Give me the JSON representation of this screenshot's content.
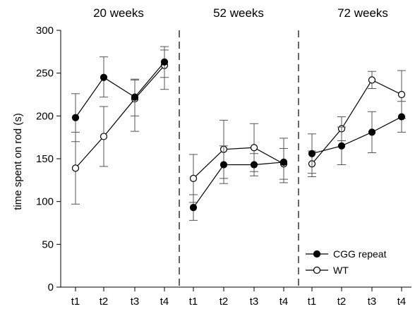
{
  "chart_data": {
    "type": "line",
    "ylabel": "time spent on rod (s)",
    "ylim": [
      0,
      300
    ],
    "yticks": [
      0,
      50,
      100,
      150,
      200,
      250,
      300
    ],
    "categories": [
      "t1",
      "t2",
      "t3",
      "t4"
    ],
    "legend": {
      "placement": "bottom-right",
      "entries": [
        {
          "label": "CGG repeat",
          "marker": "filled-circle"
        },
        {
          "label": "WT",
          "marker": "open-circle"
        }
      ]
    },
    "panels": [
      {
        "title": "20 weeks",
        "series": [
          {
            "name": "CGG repeat",
            "values": [
              198,
              245,
              222,
              263
            ],
            "err_low": [
              170,
              222,
              200,
              245
            ],
            "err_high": [
              226,
              269,
              243,
              281
            ]
          },
          {
            "name": "WT",
            "values": [
              139,
              176,
              220,
              259
            ],
            "err_low": [
              97,
              141,
              182,
              231
            ],
            "err_high": [
              181,
              211,
              242,
              277
            ]
          }
        ]
      },
      {
        "title": "52 weeks",
        "series": [
          {
            "name": "CGG repeat",
            "values": [
              93,
              143,
              143,
              146
            ],
            "err_low": [
              78,
              121,
              130,
              122
            ],
            "err_high": [
              108,
              165,
              156,
              174
            ]
          },
          {
            "name": "WT",
            "values": [
              127,
              161,
              163,
              144
            ],
            "err_low": [
              99,
              127,
              135,
              126
            ],
            "err_high": [
              155,
              195,
              191,
              162
            ]
          }
        ]
      },
      {
        "title": "72 weeks",
        "series": [
          {
            "name": "CGG repeat",
            "values": [
              156,
              165,
              181,
              199
            ],
            "err_low": [
              133,
              143,
              157,
              181
            ],
            "err_high": [
              179,
              187,
              205,
              217
            ]
          },
          {
            "name": "WT",
            "values": [
              144,
              185,
              242,
              225
            ],
            "err_low": [
              129,
              171,
              232,
              197
            ],
            "err_high": [
              159,
              199,
              252,
              253
            ]
          }
        ]
      }
    ],
    "colors": {
      "line": "#000000",
      "open_marker_fill": "#ffffff",
      "filled_marker": "#000000"
    }
  }
}
